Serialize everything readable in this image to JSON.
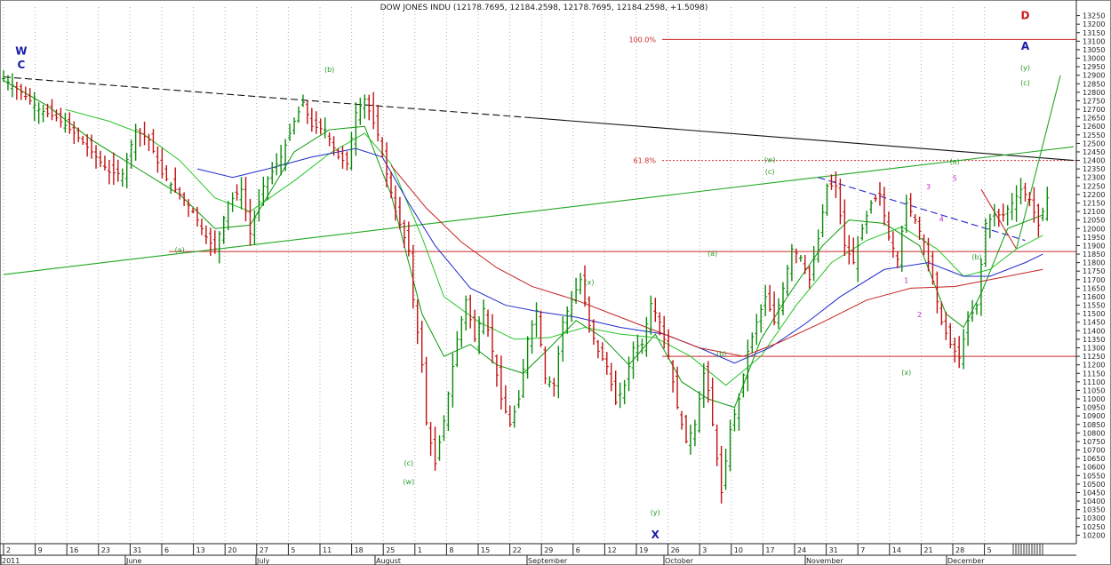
{
  "chart_data": {
    "type": "candlestick",
    "title": "DOW JONES INDU (12178.7695, 12184.2598, 12178.7695, 12184.2598, +1.5098)",
    "ylim": [
      10150,
      13300
    ],
    "y_ticks": [
      10200,
      10250,
      10300,
      10350,
      10400,
      10450,
      10500,
      10550,
      10600,
      10650,
      10700,
      10750,
      10800,
      10850,
      10900,
      10950,
      11000,
      11050,
      11100,
      11150,
      11200,
      11250,
      11300,
      11350,
      11400,
      11450,
      11500,
      11550,
      11600,
      11650,
      11700,
      11750,
      11800,
      11850,
      11900,
      11950,
      12000,
      12050,
      12100,
      12150,
      12200,
      12250,
      12300,
      12350,
      12400,
      12450,
      12500,
      12550,
      12600,
      12650,
      12700,
      12750,
      12800,
      12850,
      12900,
      12950,
      13000,
      13050,
      13100,
      13150,
      13200,
      13250
    ],
    "date_ticks": [
      "2",
      "9",
      "16",
      "23",
      "31",
      "6",
      "13",
      "20",
      "27",
      "5",
      "11",
      "18",
      "25",
      "1",
      "8",
      "15",
      "22",
      "29",
      "6",
      "12",
      "19",
      "26",
      "3",
      "10",
      "17",
      "24",
      "31",
      "7",
      "14",
      "21",
      "28",
      "5"
    ],
    "month_labels": [
      "2011",
      "June",
      "July",
      "August",
      "September",
      "October",
      "November",
      "December"
    ],
    "close_path": [
      [
        0,
        12880
      ],
      [
        4,
        12800
      ],
      [
        8,
        12700
      ],
      [
        12,
        12650
      ],
      [
        16,
        12560
      ],
      [
        20,
        12450
      ],
      [
        24,
        12330
      ],
      [
        27,
        12320
      ],
      [
        30,
        12580
      ],
      [
        33,
        12520
      ],
      [
        36,
        12320
      ],
      [
        40,
        12200
      ],
      [
        43,
        12100
      ],
      [
        46,
        11950
      ],
      [
        48,
        11880
      ],
      [
        51,
        12150
      ],
      [
        54,
        12230
      ],
      [
        56,
        11970
      ],
      [
        59,
        12250
      ],
      [
        63,
        12420
      ],
      [
        66,
        12630
      ],
      [
        68,
        12740
      ],
      [
        70,
        12600
      ],
      [
        73,
        12580
      ],
      [
        76,
        12420
      ],
      [
        78,
        12380
      ],
      [
        80,
        12680
      ],
      [
        82,
        12760
      ],
      [
        85,
        12550
      ],
      [
        87,
        12320
      ],
      [
        89,
        12100
      ],
      [
        92,
        11870
      ],
      [
        93,
        11580
      ],
      [
        95,
        11200
      ],
      [
        96,
        10860
      ],
      [
        98,
        10620
      ],
      [
        100,
        10870
      ],
      [
        103,
        11350
      ],
      [
        105,
        11580
      ],
      [
        107,
        11350
      ],
      [
        109,
        11530
      ],
      [
        111,
        11280
      ],
      [
        113,
        11000
      ],
      [
        115,
        10850
      ],
      [
        117,
        11000
      ],
      [
        119,
        11350
      ],
      [
        121,
        11520
      ],
      [
        123,
        11120
      ],
      [
        125,
        11080
      ],
      [
        127,
        11450
      ],
      [
        129,
        11580
      ],
      [
        131,
        11700
      ],
      [
        133,
        11430
      ],
      [
        135,
        11280
      ],
      [
        137,
        11190
      ],
      [
        139,
        10980
      ],
      [
        141,
        11080
      ],
      [
        143,
        11300
      ],
      [
        145,
        11320
      ],
      [
        147,
        11560
      ],
      [
        149,
        11450
      ],
      [
        151,
        11250
      ],
      [
        153,
        10950
      ],
      [
        155,
        10750
      ],
      [
        157,
        10850
      ],
      [
        159,
        11150
      ],
      [
        160,
        11050
      ],
      [
        163,
        10450
      ],
      [
        165,
        10820
      ],
      [
        167,
        11000
      ],
      [
        169,
        11280
      ],
      [
        171,
        11450
      ],
      [
        173,
        11600
      ],
      [
        175,
        11450
      ],
      [
        177,
        11650
      ],
      [
        179,
        11880
      ],
      [
        181,
        11830
      ],
      [
        183,
        11700
      ],
      [
        185,
        11940
      ],
      [
        187,
        12250
      ],
      [
        189,
        12250
      ],
      [
        191,
        11900
      ],
      [
        193,
        11800
      ],
      [
        195,
        12000
      ],
      [
        197,
        12150
      ],
      [
        199,
        12200
      ],
      [
        201,
        11950
      ],
      [
        203,
        11820
      ],
      [
        205,
        12150
      ],
      [
        207,
        12050
      ],
      [
        209,
        11920
      ],
      [
        211,
        11690
      ],
      [
        213,
        11450
      ],
      [
        215,
        11320
      ],
      [
        217,
        11240
      ],
      [
        219,
        11460
      ],
      [
        221,
        11550
      ],
      [
        223,
        12030
      ],
      [
        225,
        12080
      ],
      [
        227,
        12080
      ],
      [
        229,
        12150
      ],
      [
        231,
        12230
      ],
      [
        233,
        12170
      ],
      [
        235,
        12020
      ],
      [
        237,
        12180
      ]
    ],
    "series": [
      {
        "name": "",
        "color": "#0a9a0a",
        "values": [
          [
            0,
            12870
          ],
          [
            10,
            12720
          ],
          [
            20,
            12520
          ],
          [
            30,
            12360
          ],
          [
            40,
            12200
          ],
          [
            48,
            12000
          ],
          [
            56,
            12020
          ],
          [
            66,
            12450
          ],
          [
            74,
            12580
          ],
          [
            82,
            12600
          ],
          [
            88,
            12200
          ],
          [
            95,
            11500
          ],
          [
            100,
            11250
          ],
          [
            106,
            11320
          ],
          [
            112,
            11200
          ],
          [
            118,
            11150
          ],
          [
            124,
            11300
          ],
          [
            130,
            11460
          ],
          [
            136,
            11360
          ],
          [
            142,
            11200
          ],
          [
            148,
            11380
          ],
          [
            154,
            11100
          ],
          [
            160,
            11000
          ],
          [
            166,
            10950
          ],
          [
            172,
            11350
          ],
          [
            178,
            11600
          ],
          [
            186,
            11900
          ],
          [
            192,
            12050
          ],
          [
            200,
            12030
          ],
          [
            208,
            11900
          ],
          [
            214,
            11500
          ],
          [
            218,
            11420
          ],
          [
            222,
            11620
          ],
          [
            228,
            12000
          ],
          [
            236,
            12080
          ]
        ]
      },
      {
        "name": "",
        "color": "#26c626",
        "values": [
          [
            14,
            12700
          ],
          [
            24,
            12630
          ],
          [
            32,
            12550
          ],
          [
            40,
            12400
          ],
          [
            48,
            12180
          ],
          [
            56,
            12100
          ],
          [
            66,
            12280
          ],
          [
            74,
            12440
          ],
          [
            82,
            12560
          ],
          [
            88,
            12380
          ],
          [
            95,
            11950
          ],
          [
            100,
            11600
          ],
          [
            108,
            11450
          ],
          [
            116,
            11350
          ],
          [
            124,
            11360
          ],
          [
            132,
            11420
          ],
          [
            140,
            11380
          ],
          [
            148,
            11360
          ],
          [
            156,
            11250
          ],
          [
            164,
            11080
          ],
          [
            172,
            11250
          ],
          [
            180,
            11550
          ],
          [
            188,
            11800
          ],
          [
            196,
            11930
          ],
          [
            204,
            12010
          ],
          [
            212,
            11880
          ],
          [
            218,
            11720
          ],
          [
            224,
            11760
          ],
          [
            230,
            11880
          ],
          [
            236,
            11960
          ]
        ]
      },
      {
        "name": "",
        "color": "#1f2acc",
        "values": [
          [
            44,
            12350
          ],
          [
            52,
            12300
          ],
          [
            60,
            12350
          ],
          [
            70,
            12420
          ],
          [
            80,
            12470
          ],
          [
            86,
            12420
          ],
          [
            92,
            12150
          ],
          [
            98,
            11900
          ],
          [
            106,
            11650
          ],
          [
            114,
            11550
          ],
          [
            122,
            11510
          ],
          [
            130,
            11480
          ],
          [
            140,
            11420
          ],
          [
            150,
            11380
          ],
          [
            158,
            11300
          ],
          [
            166,
            11210
          ],
          [
            174,
            11300
          ],
          [
            182,
            11440
          ],
          [
            190,
            11600
          ],
          [
            200,
            11760
          ],
          [
            210,
            11800
          ],
          [
            218,
            11720
          ],
          [
            224,
            11720
          ],
          [
            232,
            11800
          ],
          [
            236,
            11850
          ]
        ]
      },
      {
        "name": "",
        "color": "#c62020",
        "values": [
          [
            88,
            12370
          ],
          [
            96,
            12120
          ],
          [
            104,
            11920
          ],
          [
            112,
            11770
          ],
          [
            120,
            11660
          ],
          [
            130,
            11580
          ],
          [
            140,
            11480
          ],
          [
            150,
            11380
          ],
          [
            158,
            11300
          ],
          [
            168,
            11250
          ],
          [
            176,
            11330
          ],
          [
            186,
            11450
          ],
          [
            196,
            11580
          ],
          [
            206,
            11650
          ],
          [
            216,
            11660
          ],
          [
            226,
            11710
          ],
          [
            236,
            11760
          ]
        ]
      }
    ],
    "reference_lines": [
      {
        "label": "100.0%",
        "value": 13110,
        "color": "#cc2a2a",
        "style": "solid"
      },
      {
        "label": "61.8%",
        "value": 12400,
        "color": "#cc2a2a",
        "style": "dotted"
      },
      {
        "label": "",
        "value": 11865,
        "color": "#cc2a2a",
        "style": "solid"
      },
      {
        "label": "",
        "value": 11250,
        "color": "#cc2a2a",
        "style": "solid"
      }
    ],
    "trend_lines": [
      {
        "color": "#111111",
        "style": "dashed",
        "points": [
          [
            0,
            12890
          ],
          [
            120,
            12650
          ]
        ]
      },
      {
        "color": "#111111",
        "style": "solid",
        "points": [
          [
            120,
            12650
          ],
          [
            243,
            12400
          ]
        ]
      },
      {
        "color": "#22a622",
        "style": "solid",
        "points": [
          [
            0,
            11730
          ],
          [
            243,
            12480
          ]
        ]
      },
      {
        "color": "#2a2ad0",
        "style": "dashed",
        "points": [
          [
            185,
            12300
          ],
          [
            232,
            11930
          ]
        ]
      },
      {
        "color": "#cc2a2a",
        "style": "solid",
        "points": [
          [
            222,
            12230
          ],
          [
            230,
            11880
          ]
        ]
      },
      {
        "color": "#22a622",
        "style": "solid",
        "points": [
          [
            230,
            11880
          ],
          [
            240,
            12900
          ]
        ]
      }
    ],
    "annotations": [
      {
        "text": "W",
        "x": 2,
        "y": 13020,
        "color": "#1a1aa8"
      },
      {
        "text": "C",
        "x": 2,
        "y": 12940,
        "color": "#1a1aa8"
      },
      {
        "text": "(b)",
        "x": 74,
        "y": 12920,
        "color": "#2a9a2a"
      },
      {
        "text": "(a)",
        "x": 40,
        "y": 11860,
        "color": "#2a9a2a"
      },
      {
        "text": "(c)",
        "x": 92,
        "y": 10610,
        "color": "#2a9a2a"
      },
      {
        "text": "(w)",
        "x": 92,
        "y": 10500,
        "color": "#2a9a2a"
      },
      {
        "text": "(x)",
        "x": 133,
        "y": 11670,
        "color": "#2a9a2a"
      },
      {
        "text": "(y)",
        "x": 148,
        "y": 10320,
        "color": "#2a9a2a"
      },
      {
        "text": "X",
        "x": 148,
        "y": 10180,
        "color": "#1a1aa8"
      },
      {
        "text": "(a)",
        "x": 161,
        "y": 11840,
        "color": "#2a9a2a"
      },
      {
        "text": "(b)",
        "x": 163,
        "y": 11250,
        "color": "#2a9a2a"
      },
      {
        "text": "(w)",
        "x": 174,
        "y": 12390,
        "color": "#2a9a2a"
      },
      {
        "text": "(c)",
        "x": 174,
        "y": 12320,
        "color": "#2a9a2a"
      },
      {
        "text": "(x)",
        "x": 205,
        "y": 11140,
        "color": "#2a9a2a"
      },
      {
        "text": "1",
        "x": 205,
        "y": 11680,
        "color": "#c22ac2"
      },
      {
        "text": "2",
        "x": 208,
        "y": 11480,
        "color": "#c22ac2"
      },
      {
        "text": "3",
        "x": 210,
        "y": 12230,
        "color": "#c22ac2"
      },
      {
        "text": "4",
        "x": 213,
        "y": 12040,
        "color": "#c22ac2"
      },
      {
        "text": "5",
        "x": 216,
        "y": 12280,
        "color": "#c22ac2"
      },
      {
        "text": "(a)",
        "x": 216,
        "y": 12380,
        "color": "#2a9a2a"
      },
      {
        "text": "(b)",
        "x": 221,
        "y": 11820,
        "color": "#2a9a2a"
      },
      {
        "text": "(c)",
        "x": 232,
        "y": 12840,
        "color": "#2a9a2a"
      },
      {
        "text": "(y)",
        "x": 232,
        "y": 12930,
        "color": "#2a9a2a"
      },
      {
        "text": "A",
        "x": 232,
        "y": 13050,
        "color": "#1a1aa8"
      },
      {
        "text": "D",
        "x": 232,
        "y": 13230,
        "color": "#cc1a1a"
      }
    ],
    "grid": true,
    "colors": {
      "candle": "#0a8a0a",
      "bar": "#c01010",
      "grid": "#b0b0b0",
      "axis": "#222222"
    }
  }
}
